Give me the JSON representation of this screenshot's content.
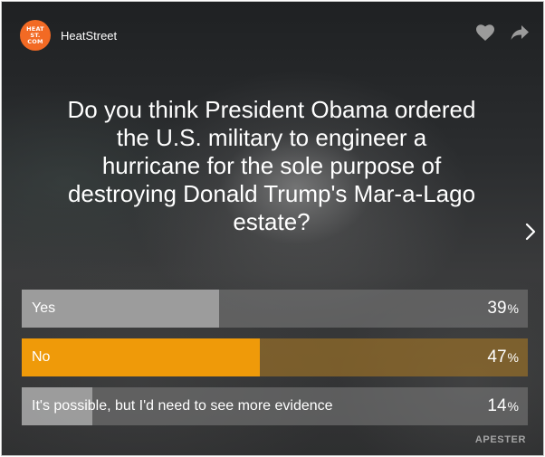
{
  "brand": {
    "logo_text": "HEAT\nST.\nCOM",
    "name": "HeatStreet",
    "logo_color": "#f26a24"
  },
  "actions": {
    "like_icon": "heart-icon",
    "share_icon": "share-arrow-icon",
    "next_icon": "chevron-right-icon"
  },
  "question": "Do you think President Obama ordered the U.S. military to engineer a hurricane for the sole purpose of destroying Donald Trump's Mar-a-Lago estate?",
  "answers": [
    {
      "label": "Yes",
      "percent": 39,
      "percent_sign": "%",
      "selected": false
    },
    {
      "label": "No",
      "percent": 47,
      "percent_sign": "%",
      "selected": true
    },
    {
      "label": "It's possible, but I'd need to see more evidence",
      "percent": 14,
      "percent_sign": "%",
      "selected": false
    }
  ],
  "credit": "APESTER",
  "colors": {
    "selected_fill": "#ef9a09",
    "accent": "#f26a24"
  }
}
